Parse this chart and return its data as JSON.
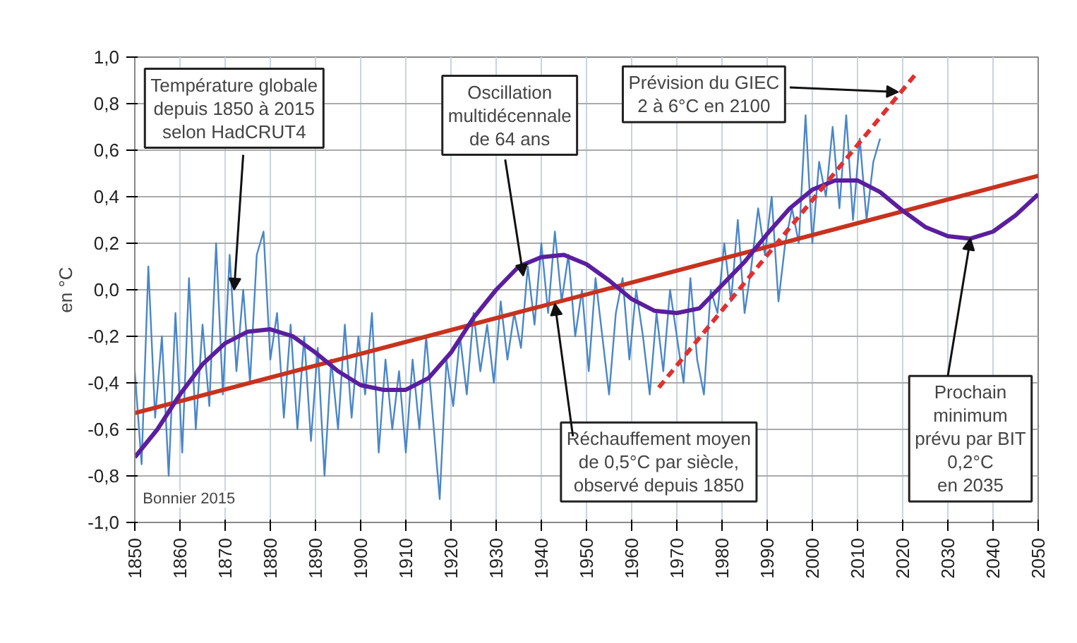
{
  "chart_data": {
    "type": "line",
    "ylabel": "en °C",
    "xlim": [
      1850,
      2050
    ],
    "ylim": [
      -1.0,
      1.0
    ],
    "xticks": [
      1850,
      1860,
      1870,
      1880,
      1890,
      1900,
      1910,
      1920,
      1930,
      1940,
      1950,
      1960,
      1970,
      1980,
      1990,
      2000,
      2010,
      2020,
      2030,
      2040,
      2050
    ],
    "yticks": [
      {
        "value": -1.0,
        "label": "-1,0"
      },
      {
        "value": -0.8,
        "label": "-0,8"
      },
      {
        "value": -0.6,
        "label": "-0,6"
      },
      {
        "value": -0.4,
        "label": "-0,4"
      },
      {
        "value": -0.2,
        "label": "-0,2"
      },
      {
        "value": 0.0,
        "label": "0,0"
      },
      {
        "value": 0.2,
        "label": "0,2"
      },
      {
        "value": 0.4,
        "label": "0,4"
      },
      {
        "value": 0.6,
        "label": "0,6"
      },
      {
        "value": 0.8,
        "label": "0,8"
      },
      {
        "value": 1.0,
        "label": "1,0"
      }
    ],
    "grid": true,
    "series": [
      {
        "color": "#4a86c8",
        "x": [
          1850,
          1851.5,
          1853,
          1854.5,
          1856,
          1857.5,
          1859,
          1860.5,
          1862,
          1863.5,
          1865,
          1866.5,
          1868,
          1869.5,
          1871,
          1872.5,
          1874,
          1875.5,
          1877,
          1878.5,
          1880,
          1881.5,
          1883,
          1884.5,
          1886,
          1887.5,
          1889,
          1890.5,
          1892,
          1893.5,
          1895,
          1896.5,
          1898,
          1899.5,
          1901,
          1902.5,
          1904,
          1905.5,
          1907,
          1908.5,
          1910,
          1911.5,
          1913,
          1914.5,
          1916,
          1917.5,
          1919,
          1920.5,
          1922,
          1923.5,
          1925,
          1926.5,
          1928,
          1929.5,
          1931,
          1932.5,
          1934,
          1935.5,
          1937,
          1938.5,
          1940,
          1941.5,
          1943,
          1944.5,
          1946,
          1947.5,
          1949,
          1950.5,
          1952,
          1953.5,
          1955,
          1956.5,
          1958,
          1959.5,
          1961,
          1962.5,
          1964,
          1965.5,
          1967,
          1968.5,
          1970,
          1971.5,
          1973,
          1974.5,
          1976,
          1977.5,
          1979,
          1980.5,
          1982,
          1983.5,
          1985,
          1986.5,
          1988,
          1989.5,
          1991,
          1992.5,
          1994,
          1995.5,
          1997,
          1998.5,
          2000,
          2001.5,
          2003,
          2004.5,
          2006,
          2007.5,
          2009,
          2010.5,
          2012,
          2013.5,
          2015
        ],
        "values": [
          -0.35,
          -0.75,
          0.1,
          -0.55,
          -0.2,
          -0.8,
          -0.1,
          -0.7,
          0.05,
          -0.6,
          -0.15,
          -0.5,
          0.2,
          -0.45,
          0.15,
          -0.35,
          0.0,
          -0.4,
          0.15,
          0.25,
          -0.3,
          -0.1,
          -0.55,
          -0.15,
          -0.6,
          -0.2,
          -0.65,
          -0.25,
          -0.8,
          -0.3,
          -0.6,
          -0.15,
          -0.55,
          -0.2,
          -0.45,
          -0.1,
          -0.7,
          -0.3,
          -0.6,
          -0.35,
          -0.7,
          -0.3,
          -0.6,
          -0.2,
          -0.55,
          -0.9,
          -0.3,
          -0.5,
          -0.2,
          -0.45,
          -0.1,
          -0.35,
          -0.15,
          -0.4,
          -0.05,
          -0.3,
          -0.1,
          -0.25,
          0.1,
          -0.15,
          0.2,
          -0.1,
          0.25,
          -0.05,
          0.15,
          -0.2,
          0.0,
          -0.35,
          0.05,
          -0.2,
          -0.45,
          -0.1,
          0.05,
          -0.3,
          0.0,
          -0.2,
          -0.45,
          -0.1,
          -0.35,
          0.0,
          -0.2,
          -0.4,
          0.05,
          -0.3,
          -0.45,
          0.0,
          -0.1,
          0.2,
          -0.05,
          0.3,
          -0.1,
          0.1,
          0.35,
          0.15,
          0.4,
          -0.05,
          0.2,
          0.35,
          0.2,
          0.75,
          0.2,
          0.55,
          0.4,
          0.7,
          0.35,
          0.75,
          0.3,
          0.65,
          0.3,
          0.55,
          0.65
        ]
      },
      {
        "color": "#c8321e",
        "x": [
          1850,
          2050
        ],
        "values": [
          -0.53,
          0.49
        ]
      },
      {
        "color": "#5a1e9e",
        "x": [
          1850,
          1855,
          1860,
          1865,
          1870,
          1875,
          1880,
          1885,
          1890,
          1895,
          1900,
          1905,
          1910,
          1915,
          1920,
          1925,
          1930,
          1935,
          1940,
          1945,
          1950,
          1955,
          1960,
          1965,
          1970,
          1975,
          1980,
          1985,
          1990,
          1995,
          2000,
          2005,
          2010,
          2015,
          2020,
          2025,
          2030,
          2035,
          2040,
          2045,
          2050
        ],
        "values": [
          -0.72,
          -0.6,
          -0.45,
          -0.32,
          -0.23,
          -0.18,
          -0.17,
          -0.2,
          -0.27,
          -0.35,
          -0.41,
          -0.43,
          -0.43,
          -0.38,
          -0.27,
          -0.12,
          0.0,
          0.1,
          0.14,
          0.15,
          0.11,
          0.04,
          -0.04,
          -0.09,
          -0.1,
          -0.08,
          0.02,
          0.12,
          0.24,
          0.35,
          0.43,
          0.47,
          0.47,
          0.42,
          0.34,
          0.27,
          0.23,
          0.22,
          0.25,
          0.32,
          0.41
        ]
      },
      {
        "color": "#e03030",
        "line_style": "dashed",
        "x": [
          1966,
          2023
        ],
        "values": [
          -0.42,
          0.93
        ]
      }
    ],
    "annotations": [
      {
        "text": "Température globale\ndepuis 1850 à 2015\nselon HadCRUT4",
        "x": 1872,
        "y": 0.0
      },
      {
        "text": "Oscillation\nmultidécennale\nde 64 ans",
        "x": 1936,
        "y": 0.06
      },
      {
        "text": "Prévision du GIEC\n2 à 6°C en 2100",
        "x": 2019,
        "y": 0.85
      },
      {
        "text": "Réchauffement moyen\nde 0,5°C par siècle,\nobservé depuis 1850",
        "x": 1943,
        "y": -0.06
      },
      {
        "text": "Prochain\nminimum\nprévu par BIT\n0,2°C\nen 2035",
        "x": 2035,
        "y": 0.22
      },
      "Bonnier 2015"
    ]
  }
}
